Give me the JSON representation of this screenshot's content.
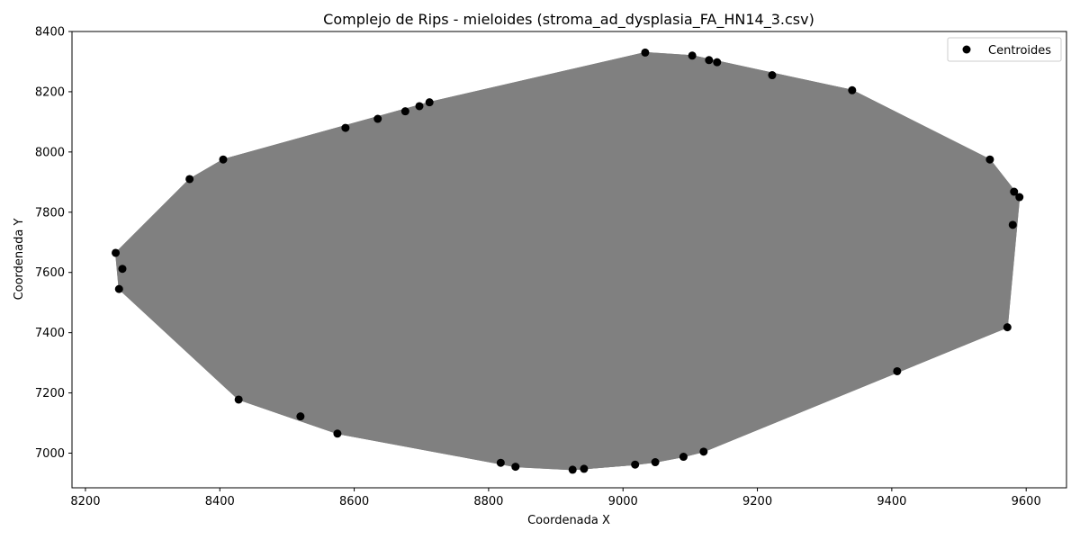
{
  "chart_data": {
    "type": "scatter",
    "title": "Complejo de Rips - mieloides (stroma_ad_dysplasia_FA_HN14_3.csv)",
    "xlabel": "Coordenada X",
    "ylabel": "Coordenada Y",
    "xlim": [
      8180,
      9660
    ],
    "ylim": [
      6885,
      8400
    ],
    "xticks": [
      8200,
      8400,
      8600,
      8800,
      9000,
      9200,
      9400,
      9600
    ],
    "yticks": [
      7000,
      7200,
      7400,
      7600,
      7800,
      8000,
      8200,
      8400
    ],
    "grid": false,
    "legend": {
      "position": "top-right",
      "entries": [
        "Centroides"
      ]
    },
    "colors": {
      "points": "#000000",
      "edges": "#808080"
    },
    "series": [
      {
        "name": "Centroides",
        "points": [
          [
            8245,
            7665
          ],
          [
            8255,
            7612
          ],
          [
            8250,
            7545
          ],
          [
            8355,
            7910
          ],
          [
            8405,
            7975
          ],
          [
            8587,
            8080
          ],
          [
            8635,
            8110
          ],
          [
            8676,
            8135
          ],
          [
            8697,
            8152
          ],
          [
            8712,
            8165
          ],
          [
            9033,
            8330
          ],
          [
            9103,
            8320
          ],
          [
            9128,
            8305
          ],
          [
            9140,
            8298
          ],
          [
            9222,
            8255
          ],
          [
            9341,
            8205
          ],
          [
            9546,
            7975
          ],
          [
            9582,
            7868
          ],
          [
            9590,
            7850
          ],
          [
            9580,
            7758
          ],
          [
            9572,
            7418
          ],
          [
            9408,
            7272
          ],
          [
            9120,
            7005
          ],
          [
            9090,
            6988
          ],
          [
            9048,
            6970
          ],
          [
            9018,
            6962
          ],
          [
            8942,
            6948
          ],
          [
            8925,
            6945
          ],
          [
            8840,
            6955
          ],
          [
            8818,
            6968
          ],
          [
            8575,
            7065
          ],
          [
            8520,
            7122
          ],
          [
            8428,
            7178
          ]
        ]
      }
    ]
  }
}
